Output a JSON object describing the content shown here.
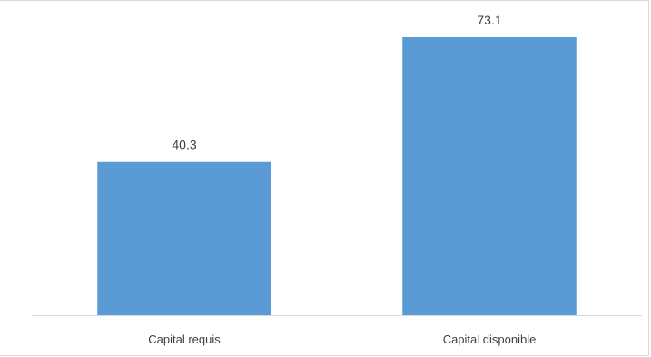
{
  "chart_data": {
    "type": "bar",
    "categories": [
      "Capital requis",
      "Capital disponible"
    ],
    "values": [
      40.3,
      73.1
    ],
    "data_labels": [
      "40.3",
      "73.1"
    ],
    "title": "",
    "xlabel": "",
    "ylabel": "",
    "ylim": [
      0,
      80
    ],
    "grid": false,
    "legend": "none",
    "bar_color": "#5b9bd5",
    "axis_color": "#d9d9d9"
  }
}
